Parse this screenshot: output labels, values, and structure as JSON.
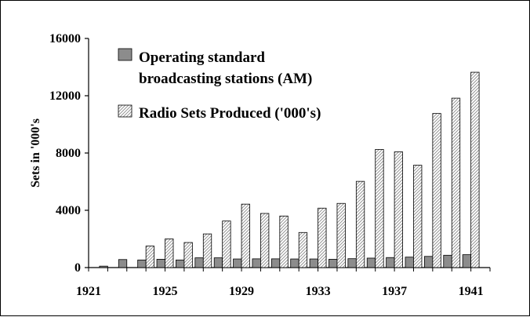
{
  "chart_data": {
    "type": "bar",
    "xlabel": "",
    "ylabel": "Sets in '000's",
    "ylim": [
      0,
      16000
    ],
    "yticks": [
      0,
      4000,
      8000,
      12000,
      16000
    ],
    "ytick_labels": [
      "0",
      "4000",
      "8000",
      "12000",
      "16000"
    ],
    "xlim": [
      1921,
      1942
    ],
    "xticks": [
      1921,
      1925,
      1929,
      1933,
      1937,
      1941
    ],
    "xtick_labels": [
      "1921",
      "1925",
      "1929",
      "1933",
      "1937",
      "1941"
    ],
    "grid": false,
    "legend_position": "top-left",
    "categories": [
      1922,
      1923,
      1924,
      1925,
      1926,
      1927,
      1928,
      1929,
      1930,
      1931,
      1932,
      1933,
      1934,
      1935,
      1936,
      1937,
      1938,
      1939,
      1940,
      1941
    ],
    "series": [
      {
        "name": "Operating standard broadcasting stations (AM)",
        "legend_lines": [
          "Operating standard",
          "broadcasting stations (AM)"
        ],
        "color": "#8c8c8c",
        "values": [
          100,
          560,
          530,
          580,
          530,
          680,
          680,
          600,
          610,
          610,
          600,
          600,
          580,
          620,
          660,
          700,
          730,
          780,
          860,
          900
        ]
      },
      {
        "name": "Radio Sets Produced ('000's)",
        "legend_lines": [
          "Radio Sets Produced ('000's)"
        ],
        "color": "#ffffff",
        "pattern": "diagonal-hatch",
        "values": [
          0,
          0,
          1500,
          2000,
          1750,
          2350,
          3250,
          4430,
          3780,
          3600,
          2450,
          4150,
          4480,
          6020,
          8250,
          8080,
          7150,
          10760,
          11830,
          13640
        ]
      }
    ]
  }
}
